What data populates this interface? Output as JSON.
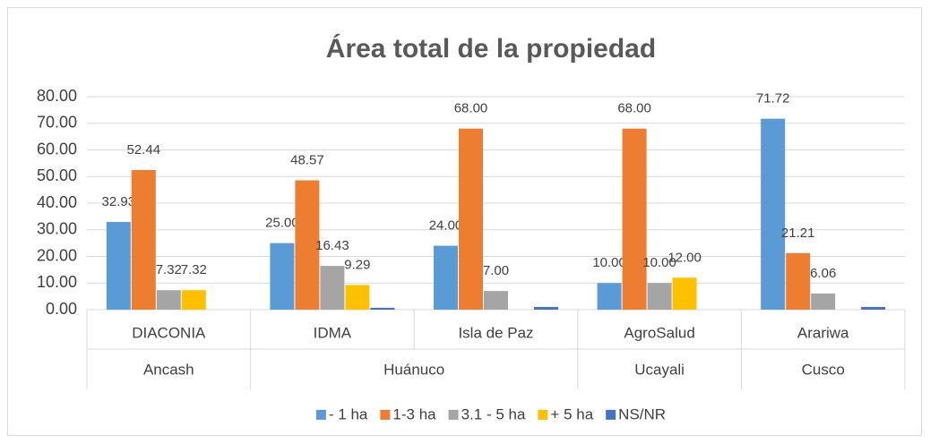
{
  "chart_data": {
    "type": "bar",
    "title": "Área total de la propiedad",
    "categories": [
      "DIACONIA",
      "IDMA",
      "Isla de Paz",
      "AgroSalud",
      "Arariwa"
    ],
    "groups": [
      {
        "name": "Ancash",
        "count": 1
      },
      {
        "name": "Huánuco",
        "count": 2
      },
      {
        "name": "Ucayali",
        "count": 1
      },
      {
        "name": "Cusco",
        "count": 1
      }
    ],
    "series": [
      {
        "name": "- 1 ha",
        "color": "#5b9bd5",
        "values": [
          32.93,
          25,
          24,
          10,
          71.72
        ],
        "value_labels": [
          "32.93",
          "25.00",
          "24.00",
          "10.00",
          "71.72"
        ]
      },
      {
        "name": "1-3 ha",
        "color": "#ed7d31",
        "values": [
          52.44,
          48.57,
          68,
          68,
          21.21
        ],
        "value_labels": [
          "52.44",
          "48.57",
          "68.00",
          "68.00",
          "21.21"
        ]
      },
      {
        "name": "3.1 - 5 ha",
        "color": "#a5a5a5",
        "values": [
          7.32,
          16.43,
          7,
          10,
          6.06
        ],
        "value_labels": [
          "7.32",
          "16.43",
          "7.00",
          "10.00",
          "6.06"
        ]
      },
      {
        "name": "+ 5 ha",
        "color": "#ffc000",
        "values": [
          7.32,
          9.29,
          null,
          12,
          null
        ],
        "value_labels": [
          "7.32",
          "9.29",
          null,
          "12.00",
          null
        ]
      },
      {
        "name": "NS/NR",
        "color": "#4472c4",
        "values": [
          null,
          0.71,
          1,
          null,
          1
        ]
      }
    ],
    "ylim": [
      0,
      80
    ],
    "yticks": [
      {
        "value": 0,
        "label": "0.00"
      },
      {
        "value": 10,
        "label": "10.00"
      },
      {
        "value": 20,
        "label": "20.00"
      },
      {
        "value": 30,
        "label": "30.00"
      },
      {
        "value": 40,
        "label": "40.00"
      },
      {
        "value": 50,
        "label": "50.00"
      },
      {
        "value": 60,
        "label": "60.00"
      },
      {
        "value": 70,
        "label": "70.00"
      },
      {
        "value": 80,
        "label": "80.00"
      }
    ],
    "grid": true,
    "legend": "bottom"
  }
}
